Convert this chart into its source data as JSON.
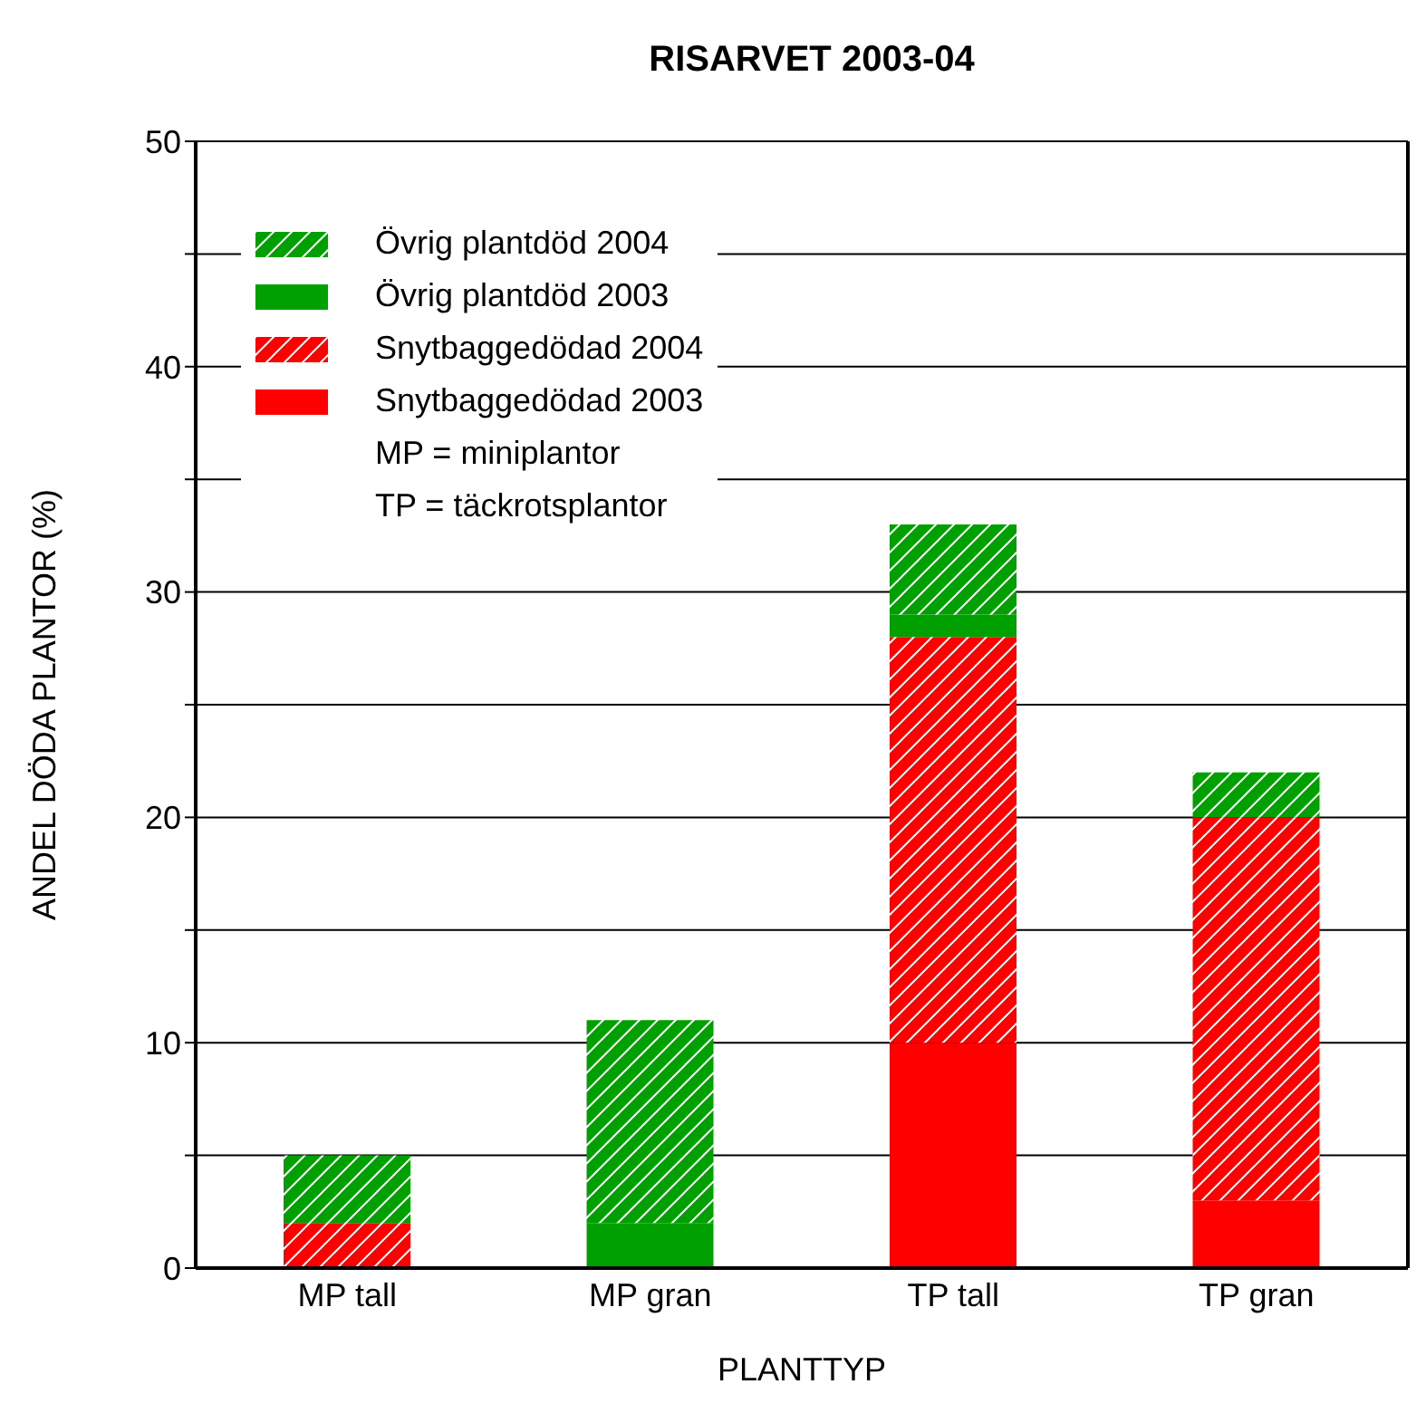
{
  "chart_data": {
    "type": "bar",
    "title": "RISARVET 2003-04",
    "xlabel": "PLANTTYP",
    "ylabel": "ANDEL DÖDA PLANTOR (%)",
    "categories": [
      "MP tall",
      "MP gran",
      "TP tall",
      "TP gran"
    ],
    "stacked": true,
    "series": [
      {
        "name": "Snytbaggedödad 2003",
        "color": "#ff0000",
        "values": [
          0,
          0,
          10,
          3
        ]
      },
      {
        "name": "Snytbaggedödad 2004",
        "color": "#ff0000",
        "values": [
          2,
          0,
          18,
          17
        ]
      },
      {
        "name": "Övrig plantdöd 2003",
        "color": "#00a000",
        "values": [
          0,
          2,
          1,
          0
        ]
      },
      {
        "name": "Övrig plantdöd 2004",
        "color": "#00a000",
        "values": [
          3,
          9,
          4,
          2
        ]
      }
    ],
    "ylim": [
      0,
      50
    ],
    "yticks": [
      0,
      {
        "value": 5,
        "label": null
      },
      10,
      {
        "value": 15,
        "label": null
      },
      20,
      {
        "value": 25,
        "label": null
      },
      30,
      {
        "value": 35,
        "label": null
      },
      40,
      {
        "value": 45,
        "label": null
      },
      50
    ],
    "grid": "y",
    "legend": "top left",
    "annotations": [
      "MP = miniplantor",
      "TP = täckrotsplantor"
    ]
  }
}
